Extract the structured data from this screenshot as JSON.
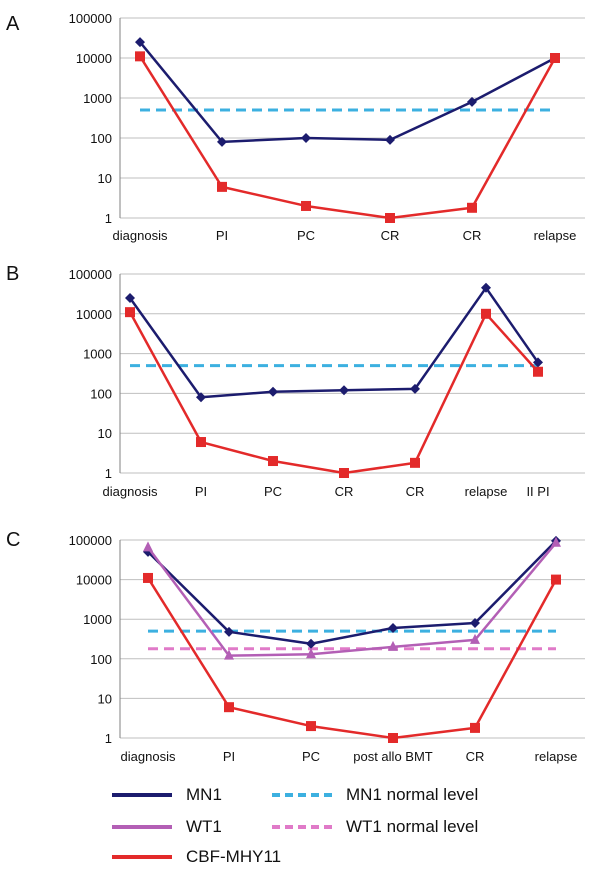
{
  "colors": {
    "mn1": "#1c1c6e",
    "wt1": "#b35fb5",
    "cbf": "#e32a2a",
    "mn1_normal": "#3cb0e0",
    "wt1_normal": "#e07ac8",
    "grid": "#bfbfbf",
    "axis": "#808080"
  },
  "legend": {
    "mn1": "MN1",
    "wt1": "WT1",
    "cbf": "CBF-MHY11",
    "mn1_normal": "MN1 normal level",
    "wt1_normal": "WT1 normal level"
  },
  "chart_data": [
    {
      "type": "line",
      "panel": "A",
      "y_scale": "log",
      "ylim": [
        1,
        100000
      ],
      "y_ticks": [
        "1",
        "10",
        "100",
        "1000",
        "10000",
        "100000"
      ],
      "grid": true,
      "categories": [
        "diagnosis",
        "PI",
        "PC",
        "CR",
        "CR",
        "relapse"
      ],
      "series": [
        {
          "name": "MN1",
          "key": "mn1",
          "marker": "diamond",
          "values": [
            25000,
            80,
            100,
            90,
            800,
            10000
          ]
        },
        {
          "name": "CBF-MHY11",
          "key": "cbf",
          "marker": "square",
          "values": [
            11000,
            6,
            2,
            1,
            1.8,
            10000
          ]
        },
        {
          "name": "MN1 normal level",
          "key": "mn1_normal",
          "dashed": true,
          "values": [
            500,
            500,
            500,
            500,
            500,
            500
          ]
        }
      ]
    },
    {
      "type": "line",
      "panel": "B",
      "y_scale": "log",
      "ylim": [
        1,
        100000
      ],
      "y_ticks": [
        "1",
        "10",
        "100",
        "1000",
        "10000",
        "100000"
      ],
      "grid": true,
      "categories": [
        "diagnosis",
        "PI",
        "PC",
        "CR",
        "CR",
        "relapse",
        "II PI"
      ],
      "series": [
        {
          "name": "MN1",
          "key": "mn1",
          "marker": "diamond",
          "values": [
            25000,
            80,
            110,
            120,
            130,
            45000,
            600
          ]
        },
        {
          "name": "CBF-MHY11",
          "key": "cbf",
          "marker": "square",
          "values": [
            11000,
            6,
            2,
            1,
            1.8,
            10000,
            350
          ]
        },
        {
          "name": "MN1 normal level",
          "key": "mn1_normal",
          "dashed": true,
          "values": [
            500,
            500,
            500,
            500,
            500,
            500,
            500
          ]
        }
      ]
    },
    {
      "type": "line",
      "panel": "C",
      "y_scale": "log",
      "ylim": [
        1,
        100000
      ],
      "y_ticks": [
        "1",
        "10",
        "100",
        "1000",
        "10000",
        "100000"
      ],
      "grid": true,
      "categories": [
        "diagnosis",
        "PI",
        "PC",
        "post allo BMT",
        "CR",
        "relapse"
      ],
      "series": [
        {
          "name": "MN1",
          "key": "mn1",
          "marker": "diamond",
          "values": [
            50000,
            480,
            240,
            600,
            800,
            95000
          ]
        },
        {
          "name": "WT1",
          "key": "wt1",
          "marker": "triangle",
          "values": [
            65000,
            120,
            130,
            200,
            300,
            85000
          ]
        },
        {
          "name": "CBF-MHY11",
          "key": "cbf",
          "marker": "square",
          "values": [
            11000,
            6,
            2,
            1,
            1.8,
            10000
          ]
        },
        {
          "name": "MN1 normal level",
          "key": "mn1_normal",
          "dashed": true,
          "values": [
            500,
            500,
            500,
            500,
            500,
            500
          ]
        },
        {
          "name": "WT1 normal level",
          "key": "wt1_normal",
          "dashed": true,
          "values": [
            180,
            180,
            180,
            180,
            180,
            180
          ]
        }
      ]
    }
  ]
}
